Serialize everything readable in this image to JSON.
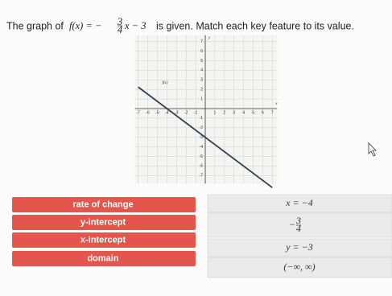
{
  "question": {
    "prefix": "The graph of",
    "formula": {
      "lhs": "f(x) = −",
      "numerator": "3",
      "denominator": "4",
      "rhs": "x − 3"
    },
    "suffix": "is given. Match each key feature to its value."
  },
  "graph": {
    "function_label": "f(x)",
    "x_axis": "x",
    "y_axis": "y",
    "xlim": [
      -7,
      7
    ],
    "ylim": [
      -7,
      7
    ],
    "xticks": [
      -7,
      -6,
      -5,
      -4,
      -3,
      -2,
      -1,
      1,
      2,
      3,
      4,
      5,
      6,
      7
    ],
    "yticks": [
      7,
      6,
      5,
      4,
      3,
      2,
      1,
      -1,
      -2,
      -3,
      -4,
      -5,
      -6,
      -7
    ],
    "line": {
      "slope": -0.75,
      "y_intercept": -3
    }
  },
  "features": [
    "rate of change",
    "y-intercept",
    "x-intercept",
    "domain"
  ],
  "answers": [
    "x = −4",
    {
      "sign": "−",
      "numerator": "3",
      "denominator": "4"
    },
    "y = −3",
    "(−∞, ∞)"
  ]
}
